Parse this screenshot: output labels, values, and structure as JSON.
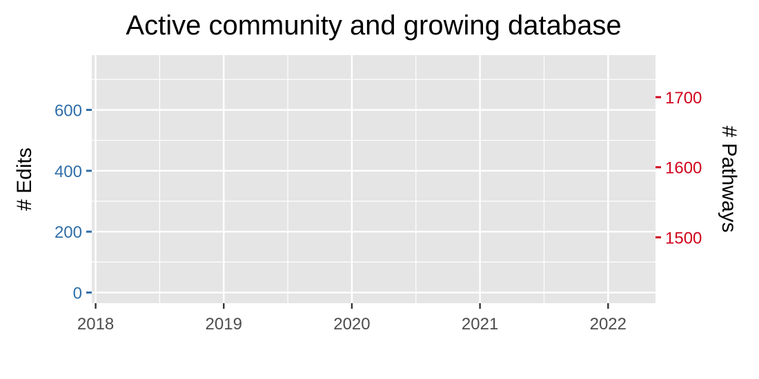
{
  "chart_data": {
    "type": "line",
    "title": "Active community and growing database",
    "xlabel": "",
    "x_axis": {
      "min": 2017.97,
      "max": 2022.37,
      "ticks": [
        2018,
        2019,
        2020,
        2021,
        2022
      ],
      "tick_labels": [
        "2018",
        "2019",
        "2020",
        "2021",
        "2022"
      ],
      "minor_ticks": [
        2018.5,
        2019.5,
        2020.5,
        2021.5
      ]
    },
    "y_left": {
      "label": "# Edits",
      "min": -35,
      "max": 780,
      "ticks": [
        0,
        200,
        400,
        600
      ],
      "tick_labels": [
        "0",
        "200",
        "400",
        "600"
      ],
      "minor_ticks": [
        100,
        300,
        500,
        700
      ],
      "color": "#2f6ea8"
    },
    "y_right": {
      "label": "# Pathways",
      "min": 1406,
      "max": 1760,
      "ticks": [
        1500,
        1600,
        1700
      ],
      "tick_labels": [
        "1500",
        "1600",
        "1700"
      ],
      "color": "#d0021b"
    },
    "grid": true,
    "panel_background": "#e5e5e5",
    "grid_color": "#ffffff",
    "series": []
  }
}
